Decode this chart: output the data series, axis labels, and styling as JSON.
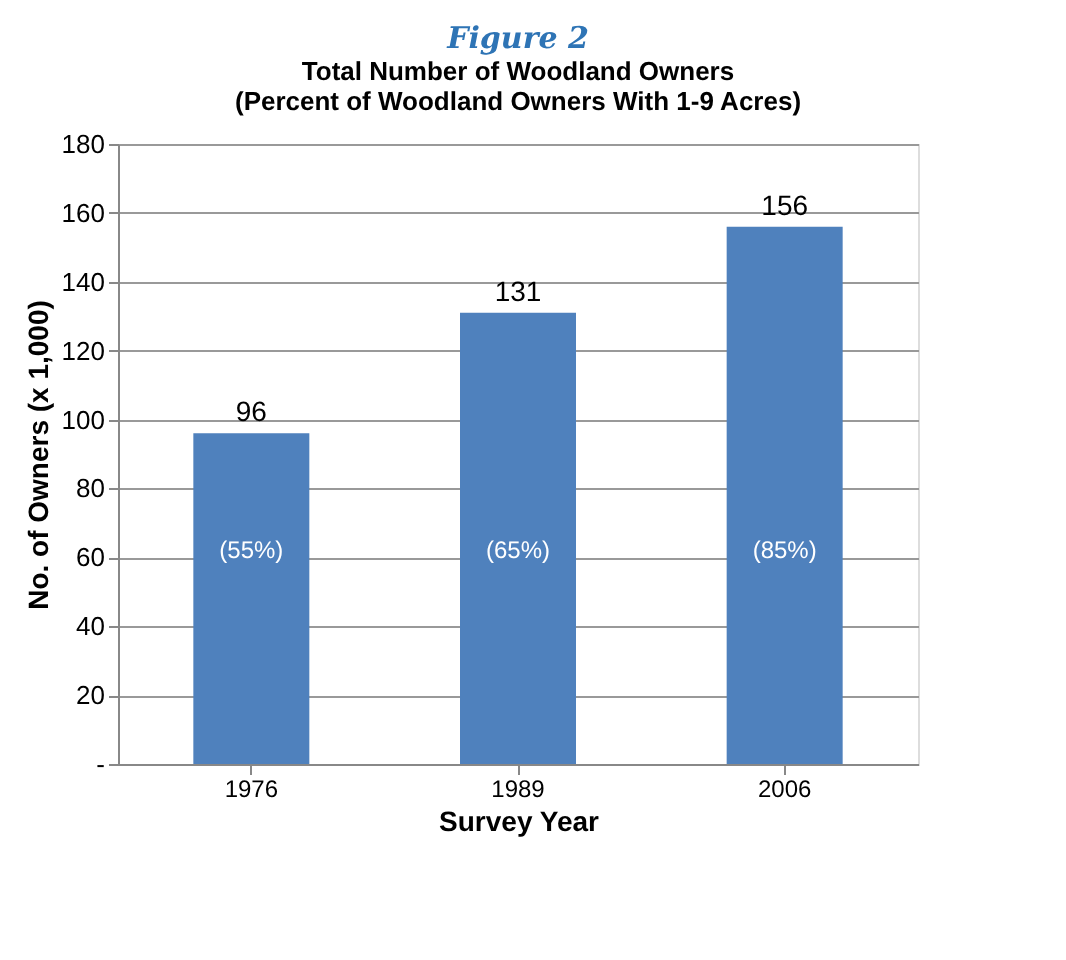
{
  "chart_data": {
    "type": "bar",
    "title": "Figure 2",
    "subtitle": "Total Number of Woodland Owners",
    "xlabel": "Survey Year",
    "ylabel": "No. of Owners (x 1,000)",
    "categories": [
      "1976",
      "1989",
      "2006"
    ],
    "values": [
      96,
      131,
      156
    ],
    "color": "#4f81bd",
    "data_labels": true,
    "annotations": [
      "(Percent of Woodland Owners With 1-9 Acres)",
      "(55%)",
      "(65%)",
      "(85%)"
    ],
    "ylim": [
      0,
      180
    ],
    "yticks": [
      {
        "value": 0,
        "label": "-"
      },
      20,
      40,
      60,
      80,
      100,
      120,
      140,
      160,
      180
    ],
    "grid": "y"
  }
}
